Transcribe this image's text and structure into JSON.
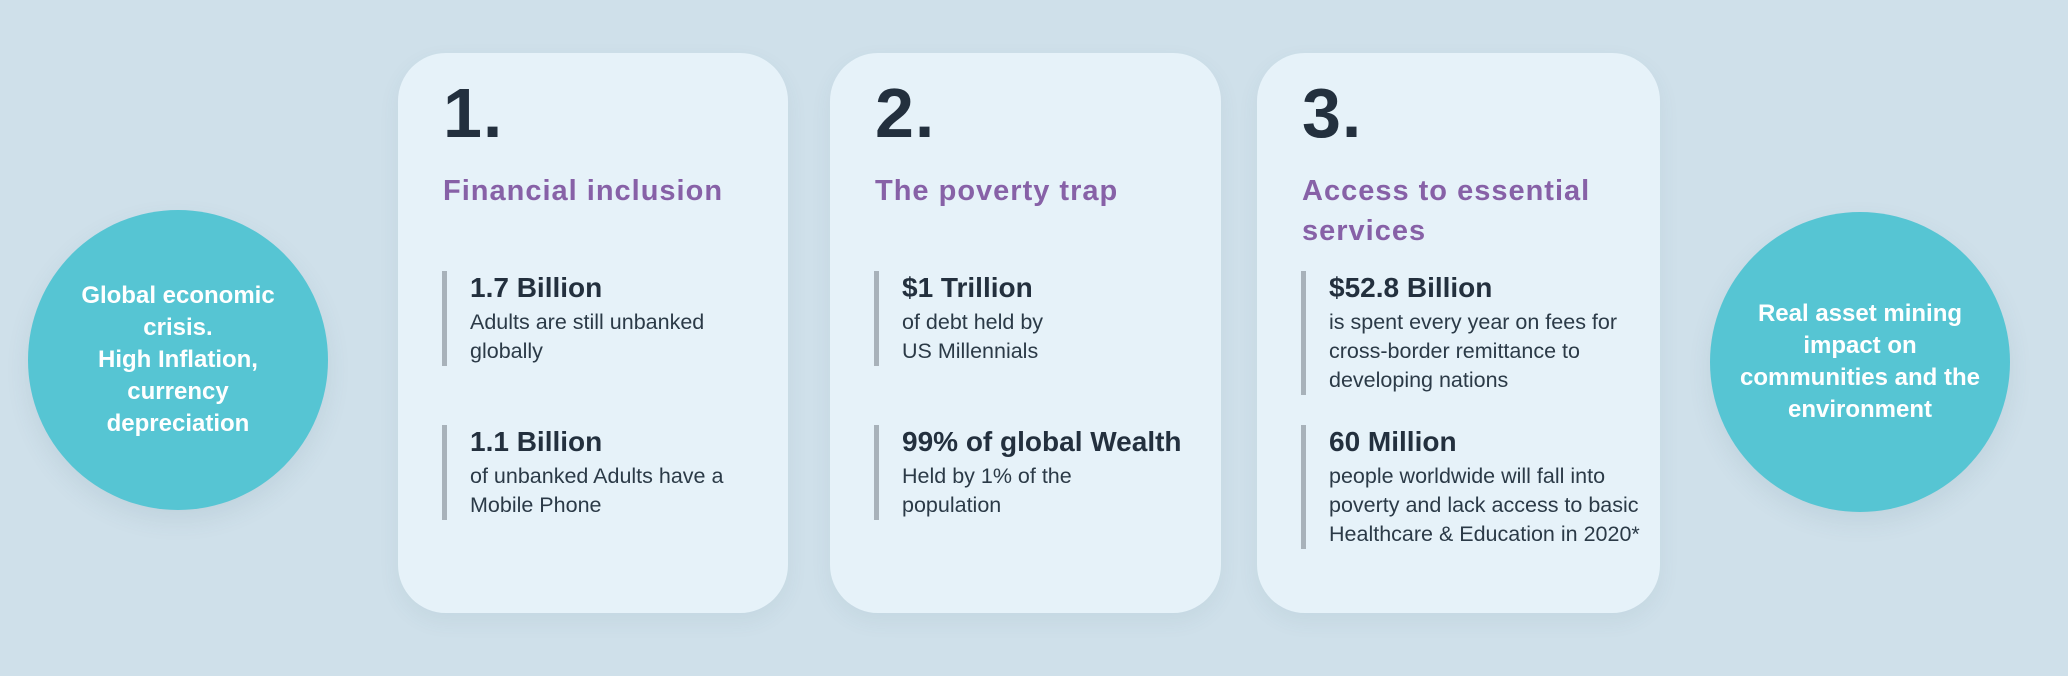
{
  "colors": {
    "page_background": "#cfe0ea",
    "card_background": "#e6f2f9",
    "circle_teal": "#56c5d3",
    "circle_text": "#ffffff",
    "heading_purple": "#8761a7",
    "text_dark": "#23303e",
    "stat_divider_gray": "#a8b2ba"
  },
  "left_circle": {
    "text": "Global economic\ncrisis.\nHigh Inflation,\ncurrency\ndepreciation"
  },
  "right_circle": {
    "text": "Real asset  mining\nimpact on\ncommunities and the\nenvironment"
  },
  "cards": [
    {
      "number": "1.",
      "title": "Financial inclusion",
      "stats": [
        {
          "value": "1.7 Billion",
          "description": "Adults are still unbanked\nglobally"
        },
        {
          "value": "1.1 Billion",
          "description": "of unbanked Adults have a\nMobile Phone"
        }
      ]
    },
    {
      "number": "2.",
      "title": "The poverty trap",
      "stats": [
        {
          "value": "$1 Trillion",
          "description": "of debt held by\nUS Millennials"
        },
        {
          "value": "99% of global Wealth",
          "description": "Held by 1% of the\npopulation"
        }
      ]
    },
    {
      "number": "3.",
      "title": "Access to essential\nservices",
      "stats": [
        {
          "value": "$52.8 Billion",
          "description": "is spent every year on fees for\ncross-border remittance to\ndeveloping nations"
        },
        {
          "value": "60 Million",
          "description": "people worldwide will fall into\npoverty and lack access to basic\nHealthcare & Education in 2020*"
        }
      ]
    }
  ]
}
